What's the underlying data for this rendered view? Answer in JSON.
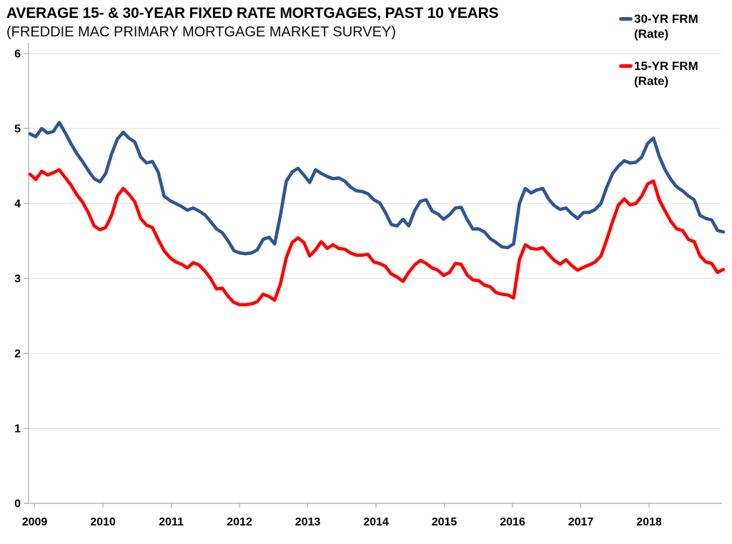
{
  "header": {
    "title": "AVERAGE 15- & 30-YEAR FIXED RATE MORTGAGES, PAST 10 YEARS",
    "subtitle": "(FREDDIE MAC PRIMARY MORTGAGE MARKET SURVEY)"
  },
  "legend": {
    "position": "top-right",
    "items": [
      {
        "label": "30-YR FRM",
        "sublabel": "(Rate)",
        "color": "#2E5693"
      },
      {
        "label": "15-YR FRM",
        "sublabel": "(Rate)",
        "color": "#FF0000"
      }
    ]
  },
  "colors": {
    "background": "#FFFFFF",
    "gridline": "#DBDBDB",
    "axis": "#ABABAB",
    "text": "#000000",
    "series_30yr": "#2E5693",
    "series_15yr": "#FF0000"
  },
  "chart_data": {
    "type": "line",
    "title": "AVERAGE 15- & 30-YEAR FIXED RATE MORTGAGES, PAST 10 YEARS",
    "subtitle": "(FREDDIE MAC PRIMARY MORTGAGE MARKET SURVEY)",
    "xlabel": "",
    "ylabel": "",
    "ylim": [
      0,
      6
    ],
    "y_ticks": [
      0,
      1,
      2,
      3,
      4,
      5,
      6
    ],
    "x_tick_labels": [
      "2009",
      "2010",
      "2011",
      "2012",
      "2013",
      "2014",
      "2015",
      "2016",
      "2017",
      "2018"
    ],
    "points_per_year": 12,
    "grid": "horizontal",
    "legend_position": "top-right",
    "series": [
      {
        "name": "30-YR FRM (Rate)",
        "color": "#2E5693",
        "values": [
          4.93,
          4.89,
          5.0,
          4.94,
          4.96,
          5.08,
          4.95,
          4.8,
          4.67,
          4.56,
          4.44,
          4.33,
          4.29,
          4.4,
          4.66,
          4.86,
          4.95,
          4.87,
          4.82,
          4.62,
          4.54,
          4.56,
          4.42,
          4.1,
          4.04,
          4.0,
          3.96,
          3.91,
          3.94,
          3.9,
          3.85,
          3.76,
          3.66,
          3.61,
          3.5,
          3.37,
          3.34,
          3.33,
          3.34,
          3.38,
          3.52,
          3.55,
          3.46,
          3.85,
          4.3,
          4.42,
          4.47,
          4.38,
          4.28,
          4.45,
          4.4,
          4.36,
          4.33,
          4.34,
          4.3,
          4.22,
          4.17,
          4.16,
          4.13,
          4.05,
          4.01,
          3.88,
          3.72,
          3.7,
          3.79,
          3.7,
          3.9,
          4.03,
          4.05,
          3.9,
          3.86,
          3.79,
          3.85,
          3.94,
          3.95,
          3.79,
          3.66,
          3.66,
          3.62,
          3.53,
          3.48,
          3.42,
          3.41,
          3.46,
          4.0,
          4.2,
          4.14,
          4.18,
          4.2,
          4.06,
          3.97,
          3.92,
          3.94,
          3.86,
          3.8,
          3.88,
          3.88,
          3.92,
          4.0,
          4.22,
          4.4,
          4.5,
          4.57,
          4.54,
          4.55,
          4.62,
          4.8,
          4.87,
          4.63,
          4.45,
          4.32,
          4.22,
          4.17,
          4.1,
          4.05,
          3.84,
          3.8,
          3.78,
          3.64,
          3.62
        ]
      },
      {
        "name": "15-YR FRM (Rate)",
        "color": "#FF0000",
        "values": [
          4.39,
          4.32,
          4.43,
          4.38,
          4.41,
          4.45,
          4.35,
          4.25,
          4.12,
          4.02,
          3.88,
          3.7,
          3.65,
          3.68,
          3.84,
          4.1,
          4.2,
          4.12,
          4.02,
          3.8,
          3.71,
          3.68,
          3.52,
          3.37,
          3.28,
          3.22,
          3.19,
          3.14,
          3.21,
          3.18,
          3.1,
          3.0,
          2.86,
          2.87,
          2.76,
          2.68,
          2.65,
          2.65,
          2.66,
          2.69,
          2.79,
          2.76,
          2.71,
          2.93,
          3.28,
          3.48,
          3.54,
          3.48,
          3.3,
          3.38,
          3.49,
          3.4,
          3.45,
          3.4,
          3.39,
          3.34,
          3.31,
          3.31,
          3.32,
          3.22,
          3.2,
          3.16,
          3.06,
          3.02,
          2.96,
          3.08,
          3.18,
          3.24,
          3.2,
          3.14,
          3.11,
          3.04,
          3.08,
          3.2,
          3.19,
          3.05,
          2.98,
          2.97,
          2.91,
          2.89,
          2.81,
          2.79,
          2.78,
          2.74,
          3.25,
          3.45,
          3.4,
          3.39,
          3.41,
          3.32,
          3.24,
          3.19,
          3.25,
          3.17,
          3.11,
          3.15,
          3.18,
          3.22,
          3.3,
          3.52,
          3.76,
          3.98,
          4.06,
          3.98,
          4.0,
          4.1,
          4.26,
          4.3,
          4.05,
          3.9,
          3.76,
          3.66,
          3.64,
          3.52,
          3.49,
          3.3,
          3.22,
          3.2,
          3.08,
          3.12
        ]
      }
    ]
  }
}
